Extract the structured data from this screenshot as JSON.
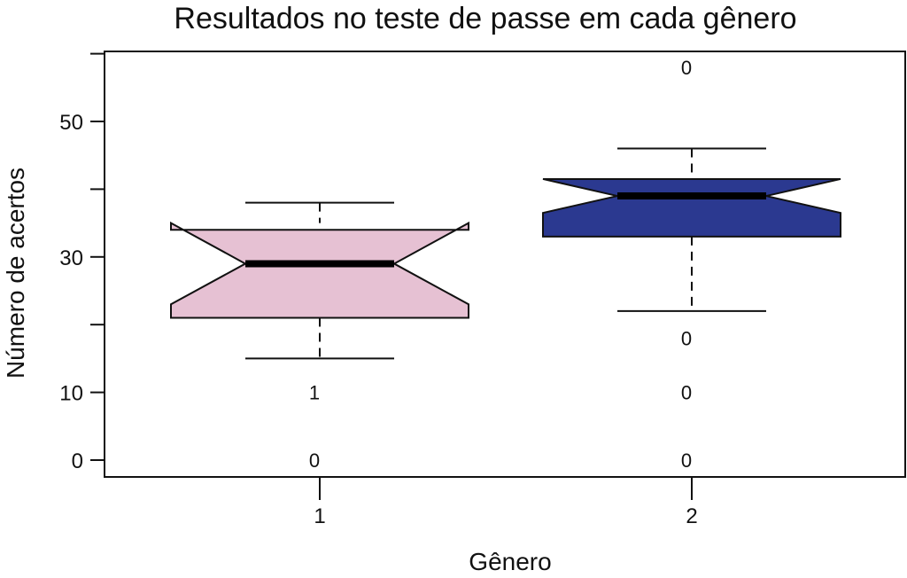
{
  "chart_data": {
    "type": "boxplot",
    "notched": true,
    "title": "Resultados no teste de passe em cada gênero",
    "xlabel": "Gênero",
    "ylabel": "Número de acertos",
    "ylim": [
      -2.5,
      60
    ],
    "y_ticks": [
      0,
      10,
      20,
      30,
      40,
      50,
      60
    ],
    "y_tick_labels": [
      "0",
      "10",
      "",
      "30",
      "",
      "50",
      ""
    ],
    "categories": [
      "1",
      "2"
    ],
    "boxes": [
      {
        "category": "1",
        "color": "#e6c1d3",
        "whisker_low": 15,
        "q1": 21,
        "notch_low": 23,
        "median": 29,
        "notch_high": 35,
        "q3": 34,
        "whisker_high": 38,
        "outliers": [
          {
            "value": 10,
            "label": "1"
          },
          {
            "value": 0,
            "label": "0"
          }
        ]
      },
      {
        "category": "2",
        "color": "#2b3990",
        "whisker_low": 22,
        "q1": 33,
        "notch_low": 36.5,
        "median": 39,
        "notch_high": 41.5,
        "q3": 41.5,
        "whisker_high": 46,
        "outliers": [
          {
            "value": 58,
            "label": "0"
          },
          {
            "value": 18,
            "label": "0"
          },
          {
            "value": 10,
            "label": "0"
          },
          {
            "value": 0,
            "label": "0"
          }
        ]
      }
    ]
  }
}
